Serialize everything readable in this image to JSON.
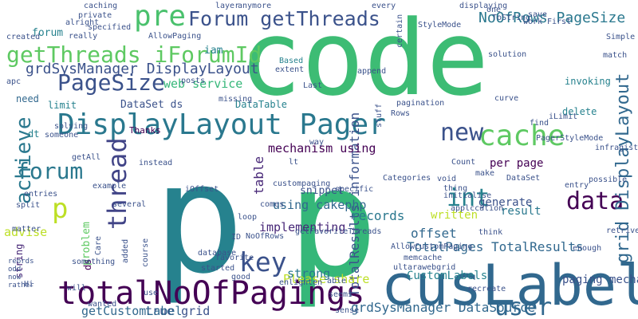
{
  "cloud": {
    "background": "#ffffff",
    "words": [
      {
        "text": "code",
        "color": "#3dbc74"
      },
      {
        "text": "p",
        "color": "#26828e"
      },
      {
        "text": "p",
        "color": "#35b779"
      },
      {
        "text": "cusLabel",
        "color": "#31688e"
      },
      {
        "text": "totalNoOfPagings",
        "color": "#440154"
      },
      {
        "text": "DisplayLayout Pager",
        "color": "#2a788e"
      },
      {
        "text": "getThreads iForumId",
        "color": "#5ec962"
      },
      {
        "text": "Forum getThreads",
        "color": "#3b528b"
      },
      {
        "text": "pre",
        "color": "#4ac16d"
      },
      {
        "text": "cache",
        "color": "#5ec962"
      },
      {
        "text": "forum",
        "color": "#2a788e"
      },
      {
        "text": "PageSize",
        "color": "#3b528b"
      },
      {
        "text": "new",
        "color": "#3b528b"
      },
      {
        "text": "thread",
        "color": "#414487"
      },
      {
        "text": "key",
        "color": "#3b528b"
      },
      {
        "text": "int",
        "color": "#26828e"
      },
      {
        "text": "data",
        "color": "#440154"
      },
      {
        "text": "user",
        "color": "#31688e"
      },
      {
        "text": "p",
        "color": "#bddf26"
      },
      {
        "text": "grid DisplayLayout",
        "color": "#31688e"
      },
      {
        "text": "NoOfRows PageSize",
        "color": "#2a788e"
      },
      {
        "text": "grdSysManager DisplayLayout",
        "color": "#3b528b"
      },
      {
        "text": "grdSysManager DataSource",
        "color": "#31688e"
      },
      {
        "text": "TotalResults information",
        "color": "#3b528b"
      },
      {
        "text": "TotalPages TotalResults",
        "color": "#31688e"
      },
      {
        "text": "web service",
        "color": "#35b779"
      },
      {
        "text": "true grid",
        "color": "#3b528b"
      },
      {
        "text": "Please share",
        "color": "#bddf26"
      },
      {
        "text": "CustomLabels",
        "color": "#26828e"
      },
      {
        "text": "paging mechanism",
        "color": "#3b528b"
      },
      {
        "text": "records",
        "color": "#2a788e"
      },
      {
        "text": "DataSet ds",
        "color": "#3b528b"
      },
      {
        "text": "mechanism using",
        "color": "#440154"
      },
      {
        "text": "implementing",
        "color": "#482878"
      },
      {
        "text": "using cakephp",
        "color": "#31688e"
      },
      {
        "text": "strong",
        "color": "#2a788e"
      },
      {
        "text": "snippet",
        "color": "#3b528b"
      },
      {
        "text": "table",
        "color": "#482878"
      },
      {
        "text": "offset",
        "color": "#31688e"
      },
      {
        "text": "written",
        "color": "#bddf26"
      },
      {
        "text": "generate",
        "color": "#3b528b"
      },
      {
        "text": "result",
        "color": "#2a788e"
      },
      {
        "text": "per page",
        "color": "#440154"
      },
      {
        "text": "getCustomLabel",
        "color": "#31688e"
      },
      {
        "text": "advise",
        "color": "#bddf26"
      },
      {
        "text": "problem",
        "color": "#5ec962"
      },
      {
        "text": "achieve",
        "color": "#2a788e"
      },
      {
        "text": "forum",
        "color": "#26828e"
      },
      {
        "text": "need",
        "color": "#31688e"
      },
      {
        "text": "limit",
        "color": "#26828e"
      },
      {
        "text": "DataTable",
        "color": "#26828e"
      },
      {
        "text": "iam",
        "color": "#26828e"
      },
      {
        "text": "invoking",
        "color": "#26828e"
      },
      {
        "text": "delete",
        "color": "#26828e"
      },
      {
        "text": "dt",
        "color": "#26828e"
      },
      {
        "text": "Thanks",
        "color": "#440154"
      },
      {
        "text": "ds",
        "color": "#440154"
      },
      {
        "text": "string",
        "color": "#482878"
      },
      {
        "text": "Based",
        "color": "#26828e"
      },
      {
        "text": "caching",
        "color": "#3b528b"
      },
      {
        "text": "displaying",
        "color": "#3b528b"
      },
      {
        "text": "solution",
        "color": "#3b528b"
      },
      {
        "text": "First",
        "color": "#3b528b"
      },
      {
        "text": "Simple",
        "color": "#3b528b"
      },
      {
        "text": "match",
        "color": "#3b528b"
      },
      {
        "text": "ToString",
        "color": "#3b528b"
      },
      {
        "text": "save",
        "color": "#3b528b"
      },
      {
        "text": "work",
        "color": "#3b528b"
      },
      {
        "text": "find",
        "color": "#3b528b"
      },
      {
        "text": "iLimit",
        "color": "#3b528b"
      },
      {
        "text": "PagerStyleMode",
        "color": "#3b528b"
      },
      {
        "text": "infragistics",
        "color": "#3b528b"
      },
      {
        "text": "possible",
        "color": "#3b528b"
      },
      {
        "text": "entry",
        "color": "#3b528b"
      },
      {
        "text": "retrive",
        "color": "#3b528b"
      },
      {
        "text": "enough",
        "color": "#3b528b"
      },
      {
        "text": "memcache",
        "color": "#3b528b"
      },
      {
        "text": "ultarawebgrid",
        "color": "#3b528b"
      },
      {
        "text": "recreate",
        "color": "#3b528b"
      },
      {
        "text": "sense",
        "color": "#3b528b"
      },
      {
        "text": "seems",
        "color": "#3b528b"
      },
      {
        "text": "able",
        "color": "#3b528b"
      },
      {
        "text": "enlighten",
        "color": "#3b528b"
      },
      {
        "text": "database",
        "color": "#3b528b"
      },
      {
        "text": "started",
        "color": "#3b528b"
      },
      {
        "text": "good",
        "color": "#3b528b"
      },
      {
        "text": "use",
        "color": "#3b528b"
      },
      {
        "text": "wanted",
        "color": "#3b528b"
      },
      {
        "text": "will",
        "color": "#3b528b"
      },
      {
        "text": "Hi",
        "color": "#3b528b"
      },
      {
        "text": "matter",
        "color": "#3b528b"
      },
      {
        "text": "split",
        "color": "#3b528b"
      },
      {
        "text": "entries",
        "color": "#3b528b"
      },
      {
        "text": "example",
        "color": "#3b528b"
      },
      {
        "text": "several",
        "color": "#3b528b"
      },
      {
        "text": "iOffset",
        "color": "#3b528b"
      },
      {
        "text": "instead",
        "color": "#3b528b"
      },
      {
        "text": "getAll",
        "color": "#3b528b"
      },
      {
        "text": "solving",
        "color": "#3b528b"
      },
      {
        "text": "someone",
        "color": "#3b528b"
      },
      {
        "text": "apc",
        "color": "#3b528b"
      },
      {
        "text": "created",
        "color": "#3b528b"
      },
      {
        "text": "private",
        "color": "#3b528b"
      },
      {
        "text": "really",
        "color": "#3b528b"
      },
      {
        "text": "specified",
        "color": "#3b528b"
      },
      {
        "text": "AllowPaging",
        "color": "#3b528b"
      },
      {
        "text": "layer",
        "color": "#3b528b"
      },
      {
        "text": "anymore",
        "color": "#3b528b"
      },
      {
        "text": "every",
        "color": "#3b528b"
      },
      {
        "text": "StyleMode",
        "color": "#3b528b"
      },
      {
        "text": "one",
        "color": "#3b528b"
      },
      {
        "text": "certain",
        "color": "#3b528b"
      },
      {
        "text": "append",
        "color": "#3b528b"
      },
      {
        "text": "extent",
        "color": "#3b528b"
      },
      {
        "text": "Last",
        "color": "#3b528b"
      },
      {
        "text": "posts",
        "color": "#3b528b"
      },
      {
        "text": "missing",
        "color": "#3b528b"
      },
      {
        "text": "pagination",
        "color": "#3b528b"
      },
      {
        "text": "Rows",
        "color": "#3b528b"
      },
      {
        "text": "stuff",
        "color": "#3b528b"
      },
      {
        "text": "way",
        "color": "#3b528b"
      },
      {
        "text": "Count",
        "color": "#3b528b"
      },
      {
        "text": "void",
        "color": "#3b528b"
      },
      {
        "text": "make",
        "color": "#3b528b"
      },
      {
        "text": "DataSet",
        "color": "#3b528b"
      },
      {
        "text": "thing",
        "color": "#3b528b"
      },
      {
        "text": "Categories",
        "color": "#3b528b"
      },
      {
        "text": "initialise",
        "color": "#3b528b"
      },
      {
        "text": "applccation",
        "color": "#3b528b"
      },
      {
        "text": "think",
        "color": "#3b528b"
      },
      {
        "text": "specific",
        "color": "#3b528b"
      },
      {
        "text": "lt",
        "color": "#3b528b"
      },
      {
        "text": "custompaging",
        "color": "#3b528b"
      },
      {
        "text": "comes",
        "color": "#3b528b"
      },
      {
        "text": "loop",
        "color": "#3b528b"
      },
      {
        "text": "NoOfRows",
        "color": "#3b528b"
      },
      {
        "text": "getFavoriteThreads",
        "color": "#3b528b"
      },
      {
        "text": "ID",
        "color": "#3b528b"
      },
      {
        "text": "favorite",
        "color": "#3b528b"
      },
      {
        "text": "course",
        "color": "#3b528b"
      },
      {
        "text": "added",
        "color": "#3b528b"
      },
      {
        "text": "Care",
        "color": "#3b528b"
      },
      {
        "text": "something",
        "color": "#3b528b"
      },
      {
        "text": "alright",
        "color": "#3b528b"
      },
      {
        "text": "AllowCustomPaging",
        "color": "#3b528b"
      },
      {
        "text": "curve",
        "color": "#3b528b"
      },
      {
        "text": "reords",
        "color": "#3b528b"
      },
      {
        "text": "odd",
        "color": "#3b528b"
      },
      {
        "text": "now",
        "color": "#3b528b"
      },
      {
        "text": "rather",
        "color": "#3b528b"
      }
    ]
  }
}
